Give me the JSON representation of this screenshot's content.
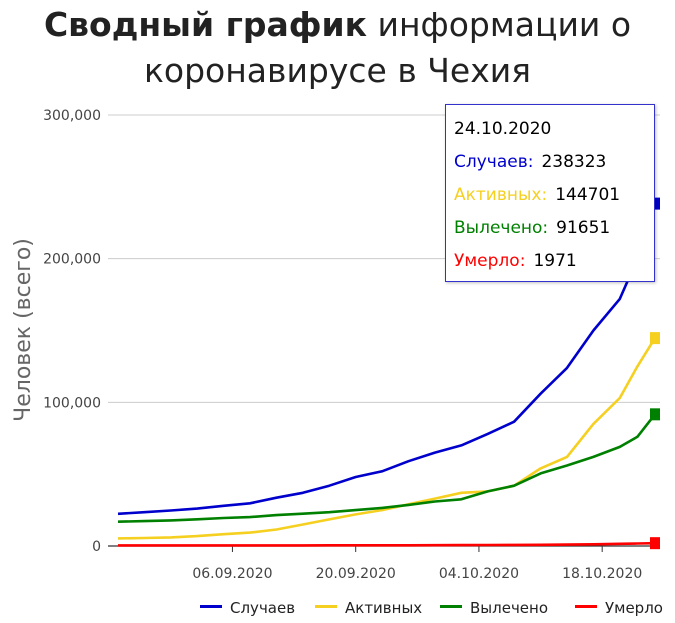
{
  "title": {
    "bold": "Сводный график",
    "rest_line1": " информации о",
    "rest_line2": "коронавирусе в Чехия"
  },
  "chart_data": {
    "type": "line",
    "title": "Сводный график информации о коронавирусе в Чехия",
    "ylabel": "Человек (всего)",
    "xlabel": "",
    "ylim": [
      0,
      300000
    ],
    "yticks": [
      0,
      100000,
      200000,
      300000
    ],
    "ytick_labels": [
      "0",
      "100,000",
      "200,000",
      "300,000"
    ],
    "x_range": [
      "2020-08-24",
      "2020-10-24"
    ],
    "xticks": [
      "2020-09-06",
      "2020-09-20",
      "2020-10-04",
      "2020-10-18"
    ],
    "xtick_labels": [
      "06.09.2020",
      "20.09.2020",
      "04.10.2020",
      "18.10.2020"
    ],
    "grid": true,
    "legend_position": "bottom-right",
    "x": [
      "2020-08-24",
      "2020-08-27",
      "2020-08-30",
      "2020-09-02",
      "2020-09-05",
      "2020-09-08",
      "2020-09-11",
      "2020-09-14",
      "2020-09-17",
      "2020-09-20",
      "2020-09-23",
      "2020-09-26",
      "2020-09-29",
      "2020-10-02",
      "2020-10-05",
      "2020-10-08",
      "2020-10-11",
      "2020-10-14",
      "2020-10-17",
      "2020-10-20",
      "2020-10-22",
      "2020-10-24"
    ],
    "series": [
      {
        "name": "Случаев",
        "color": "#0000cc",
        "values": [
          22400,
          23500,
          24700,
          26000,
          28000,
          29700,
          33600,
          37000,
          42000,
          48000,
          52000,
          59000,
          65000,
          70000,
          78000,
          86500,
          106000,
          124000,
          150000,
          172000,
          200000,
          238323
        ]
      },
      {
        "name": "Активных",
        "color": "#f5d020",
        "values": [
          5300,
          5600,
          6000,
          6900,
          8200,
          9300,
          11500,
          15000,
          18500,
          22000,
          25000,
          29000,
          33000,
          37000,
          38000,
          42000,
          54000,
          62000,
          85000,
          103000,
          125000,
          144701
        ]
      },
      {
        "name": "Вылечено",
        "color": "#008000",
        "values": [
          16900,
          17300,
          17800,
          18600,
          19500,
          20100,
          21500,
          22500,
          23500,
          25000,
          26500,
          28600,
          31000,
          32500,
          38000,
          42000,
          50500,
          56000,
          62000,
          69000,
          76000,
          91651
        ]
      },
      {
        "name": "Умерло",
        "color": "#ff0000",
        "values": [
          419,
          420,
          424,
          428,
          432,
          436,
          440,
          450,
          460,
          470,
          485,
          520,
          560,
          620,
          700,
          770,
          860,
          1000,
          1200,
          1500,
          1750,
          1971
        ]
      }
    ]
  },
  "tooltip": {
    "date": "24.10.2020",
    "rows": [
      {
        "label": "Случаев:",
        "value": "238323",
        "color": "#0000cc"
      },
      {
        "label": "Активных:",
        "value": "144701",
        "color": "#f5d020"
      },
      {
        "label": "Вылечено:",
        "value": "91651",
        "color": "#008000"
      },
      {
        "label": "Умерло:",
        "value": "1971",
        "color": "#ff0000"
      }
    ]
  },
  "legend": [
    "Случаев",
    "Активных",
    "Вылечено",
    "Умерло"
  ]
}
